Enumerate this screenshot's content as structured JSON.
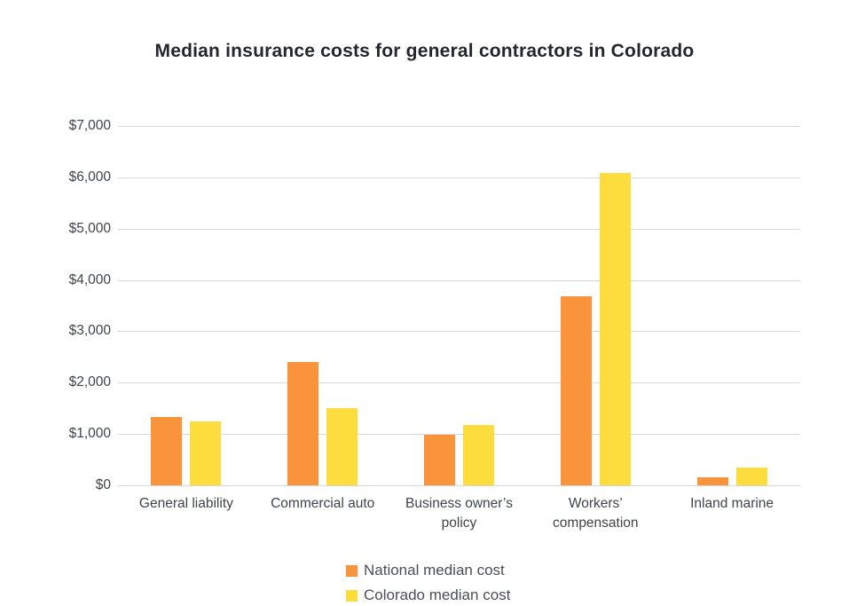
{
  "page": {
    "background_color": "#ffffff"
  },
  "chart_data": {
    "type": "bar",
    "title": "Median insurance costs for general contractors in Colorado",
    "categories": [
      "General liability",
      "Commercial auto",
      "Business owner’s policy",
      "Workers’ compensation",
      "Inland marine"
    ],
    "series": [
      {
        "name": "National median cost",
        "color": "#fa943c",
        "values": [
          1330,
          2400,
          990,
          3680,
          150
        ]
      },
      {
        "name": "Colorado median cost",
        "color": "#fddd3e",
        "values": [
          1240,
          1500,
          1180,
          6080,
          340
        ]
      }
    ],
    "xlabel": "",
    "ylabel": "",
    "ylim": [
      0,
      7000
    ],
    "ytick_step": 1000,
    "ytick_labels": [
      "$0",
      "$1,000",
      "$2,000",
      "$3,000",
      "$4,000",
      "$5,000",
      "$6,000",
      "$7,000"
    ],
    "grid": true,
    "gridline_color": "#d8d8d8",
    "legend_position": "bottom"
  }
}
